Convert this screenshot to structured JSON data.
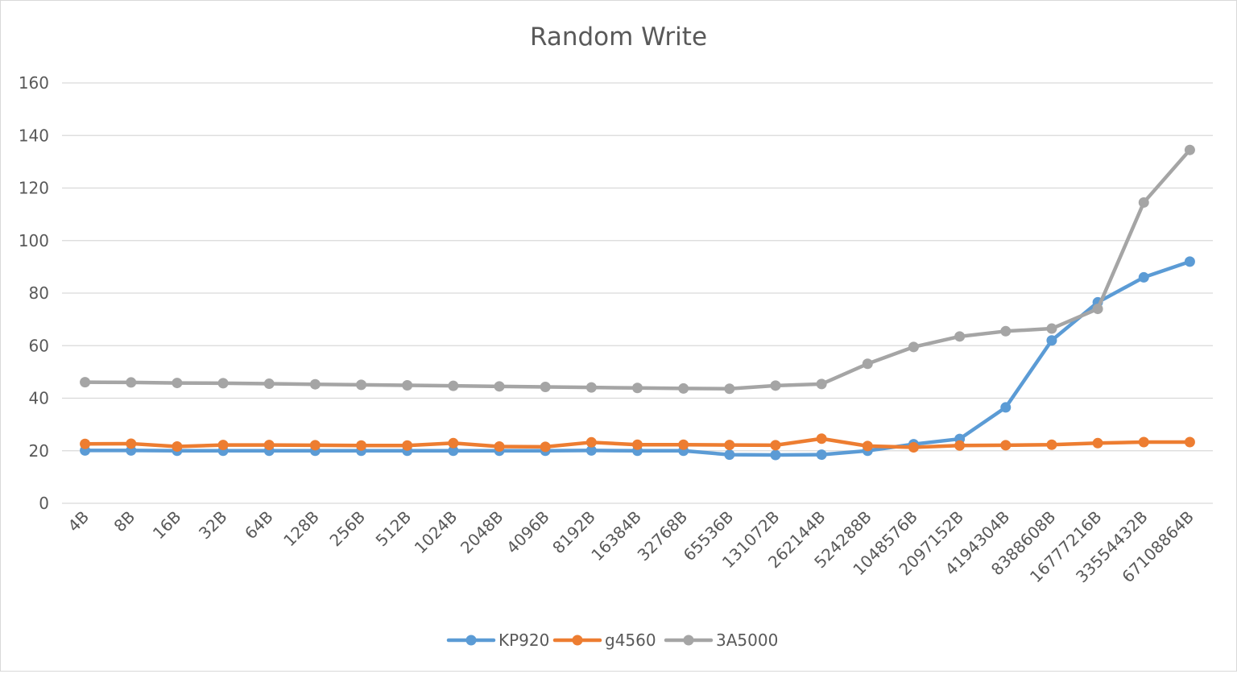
{
  "chart_data": {
    "type": "line",
    "title": "Random Write",
    "xlabel": "",
    "ylabel": "",
    "ylim": [
      0,
      160
    ],
    "yticks": [
      0,
      20,
      40,
      60,
      80,
      100,
      120,
      140,
      160
    ],
    "grid": true,
    "legend_position": "bottom",
    "categories": [
      "4B",
      "8B",
      "16B",
      "32B",
      "64B",
      "128B",
      "256B",
      "512B",
      "1024B",
      "2048B",
      "4096B",
      "8192B",
      "16384B",
      "32768B",
      "65536B",
      "131072B",
      "262144B",
      "524288B",
      "1048576B",
      "2097152B",
      "4194304B",
      "8388608B",
      "16777216B",
      "33554432B",
      "67108864B"
    ],
    "series": [
      {
        "name": "KP920",
        "color": "#5b9bd5",
        "values": [
          20.1,
          20.1,
          20.0,
          20.0,
          20.0,
          20.0,
          20.0,
          20.0,
          20.0,
          20.0,
          20.0,
          20.1,
          20.0,
          20.0,
          18.5,
          18.4,
          18.5,
          20.0,
          22.5,
          24.5,
          36.5,
          62.0,
          76.5,
          86.0,
          92.0
        ]
      },
      {
        "name": "g4560",
        "color": "#ed7d31",
        "values": [
          22.6,
          22.7,
          21.6,
          22.2,
          22.2,
          22.1,
          22.0,
          22.0,
          22.9,
          21.6,
          21.5,
          23.2,
          22.3,
          22.3,
          22.2,
          22.1,
          24.6,
          21.8,
          21.3,
          22.0,
          22.1,
          22.3,
          22.9,
          23.3,
          23.3
        ]
      },
      {
        "name": "3A5000",
        "color": "#a5a5a5",
        "values": [
          46.1,
          46.0,
          45.8,
          45.7,
          45.5,
          45.3,
          45.1,
          44.9,
          44.7,
          44.5,
          44.3,
          44.1,
          43.9,
          43.7,
          43.6,
          44.8,
          45.4,
          53.1,
          59.5,
          63.5,
          65.5,
          66.5,
          74.0,
          114.5,
          134.5
        ]
      }
    ]
  }
}
